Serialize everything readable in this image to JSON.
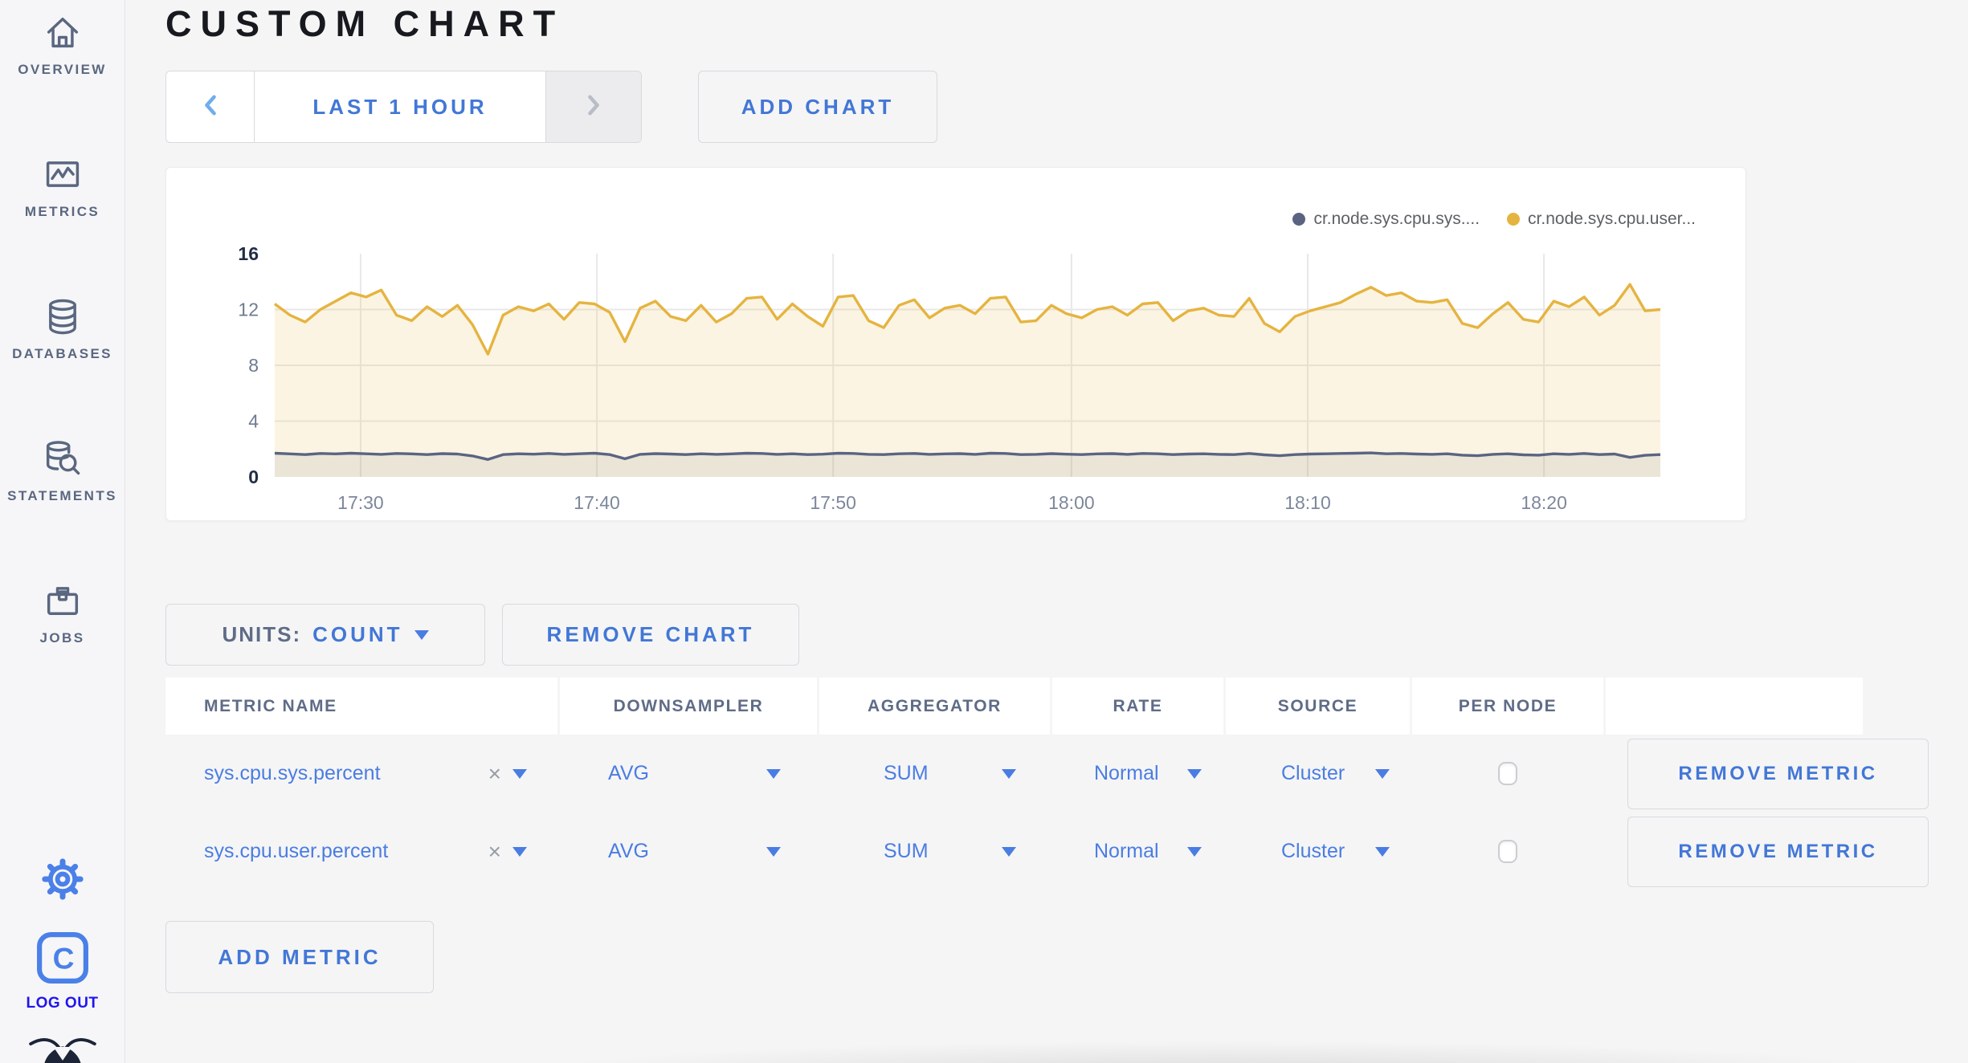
{
  "sidebar": {
    "items": [
      {
        "label": "OVERVIEW",
        "icon": "home-icon"
      },
      {
        "label": "METRICS",
        "icon": "metrics-graph-icon"
      },
      {
        "label": "DATABASES",
        "icon": "database-icon"
      },
      {
        "label": "STATEMENTS",
        "icon": "database-search-icon"
      },
      {
        "label": "JOBS",
        "icon": "briefcase-icon"
      }
    ],
    "settings_icon": "gear-icon",
    "logout": {
      "label": "LOG OUT",
      "icon": "cockroach-c-icon"
    },
    "brand_icon": "cockroach-bug-logo"
  },
  "header": {
    "title": "CUSTOM CHART"
  },
  "toolbar": {
    "time_range_label": "LAST 1 HOUR",
    "prev_icon": "chevron-left-icon",
    "next_icon": "chevron-right-icon",
    "next_disabled": true,
    "add_chart_label": "ADD CHART"
  },
  "chart_data": {
    "type": "line",
    "title": "",
    "ylim": [
      0,
      16
    ],
    "y_ticks": [
      0,
      4,
      8,
      12,
      16
    ],
    "x_ticks": {
      "labels": [
        "17:30",
        "17:40",
        "17:50",
        "18:00",
        "18:10",
        "18:20"
      ],
      "fractions": [
        0.062,
        0.2325,
        0.403,
        0.575,
        0.7455,
        0.916
      ]
    },
    "grid": true,
    "legend_position": "top-right",
    "series": [
      {
        "name": "cr.node.sys.cpu.sys....",
        "color": "#5a6482",
        "fill": "rgba(90,100,130,0.10)",
        "values": [
          1.7,
          1.65,
          1.6,
          1.68,
          1.65,
          1.7,
          1.66,
          1.62,
          1.68,
          1.65,
          1.6,
          1.67,
          1.64,
          1.5,
          1.25,
          1.6,
          1.66,
          1.63,
          1.68,
          1.62,
          1.66,
          1.7,
          1.6,
          1.3,
          1.62,
          1.67,
          1.64,
          1.6,
          1.66,
          1.62,
          1.65,
          1.7,
          1.68,
          1.62,
          1.66,
          1.6,
          1.63,
          1.7,
          1.68,
          1.62,
          1.6,
          1.66,
          1.68,
          1.62,
          1.65,
          1.67,
          1.62,
          1.7,
          1.68,
          1.6,
          1.62,
          1.67,
          1.63,
          1.6,
          1.65,
          1.67,
          1.62,
          1.68,
          1.66,
          1.6,
          1.64,
          1.66,
          1.62,
          1.6,
          1.68,
          1.58,
          1.52,
          1.6,
          1.64,
          1.66,
          1.68,
          1.7,
          1.72,
          1.66,
          1.68,
          1.64,
          1.62,
          1.66,
          1.56,
          1.52,
          1.62,
          1.66,
          1.58,
          1.56,
          1.66,
          1.62,
          1.68,
          1.6,
          1.64,
          1.4,
          1.55,
          1.6
        ]
      },
      {
        "name": "cr.node.sys.cpu.user...",
        "color": "#e5b440",
        "fill": "rgba(236,185,74,0.16)",
        "values": [
          12.4,
          11.6,
          11.1,
          12.0,
          12.6,
          13.2,
          12.9,
          13.4,
          11.6,
          11.2,
          12.2,
          11.5,
          12.3,
          10.9,
          8.8,
          11.6,
          12.2,
          11.9,
          12.4,
          11.3,
          12.5,
          12.4,
          11.8,
          9.7,
          12.1,
          12.6,
          11.5,
          11.2,
          12.3,
          11.1,
          11.7,
          12.8,
          12.9,
          11.3,
          12.4,
          11.5,
          10.8,
          12.9,
          13.0,
          11.2,
          10.7,
          12.3,
          12.7,
          11.4,
          12.1,
          12.3,
          11.7,
          12.8,
          12.9,
          11.1,
          11.2,
          12.3,
          11.7,
          11.4,
          12.0,
          12.2,
          11.6,
          12.4,
          12.5,
          11.2,
          11.9,
          12.1,
          11.6,
          11.5,
          12.8,
          11.0,
          10.4,
          11.5,
          11.9,
          12.2,
          12.5,
          13.1,
          13.6,
          13.0,
          13.2,
          12.6,
          12.5,
          12.7,
          11.0,
          10.7,
          11.7,
          12.5,
          11.3,
          11.1,
          12.6,
          12.2,
          12.9,
          11.6,
          12.3,
          13.8,
          11.9,
          12.0
        ]
      }
    ]
  },
  "chart_controls": {
    "units_label": "UNITS:",
    "units_value": "COUNT",
    "remove_chart_label": "REMOVE CHART",
    "add_metric_label": "ADD METRIC",
    "remove_metric_label": "REMOVE METRIC",
    "clear_glyph": "×"
  },
  "metrics_table": {
    "columns": [
      "METRIC NAME",
      "DOWNSAMPLER",
      "AGGREGATOR",
      "RATE",
      "SOURCE",
      "PER NODE",
      ""
    ],
    "rows": [
      {
        "name": "sys.cpu.sys.percent",
        "downsampler": "AVG",
        "aggregator": "SUM",
        "rate": "Normal",
        "source": "Cluster",
        "per_node_checked": false
      },
      {
        "name": "sys.cpu.user.percent",
        "downsampler": "AVG",
        "aggregator": "SUM",
        "rate": "Normal",
        "source": "Cluster",
        "per_node_checked": false
      }
    ]
  },
  "icons": {
    "caret": "triangle-down",
    "prev": "chevron-left",
    "next": "chevron-right"
  }
}
